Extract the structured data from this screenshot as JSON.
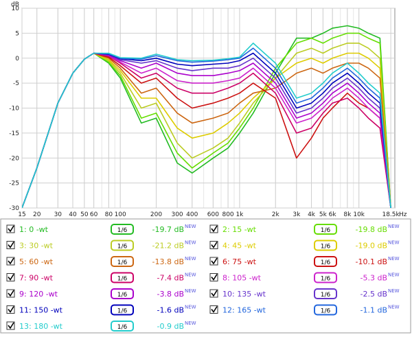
{
  "chart_data": {
    "type": "line",
    "ylabel": "dB",
    "xunit": "Hz",
    "xscale": "log",
    "xlim": [
      15,
      20000
    ],
    "ylim": [
      -30,
      10
    ],
    "y_ticks": [
      10,
      5,
      0,
      -5,
      -10,
      -15,
      -20,
      -25,
      -30
    ],
    "x_ticks": [
      {
        "v": 15,
        "label": "15"
      },
      {
        "v": 20,
        "label": "20"
      },
      {
        "v": 30,
        "label": "30"
      },
      {
        "v": 40,
        "label": "40"
      },
      {
        "v": 50,
        "label": "50"
      },
      {
        "v": 60,
        "label": "60"
      },
      {
        "v": 80,
        "label": "80"
      },
      {
        "v": 100,
        "label": "100"
      },
      {
        "v": 200,
        "label": "200"
      },
      {
        "v": 300,
        "label": "300"
      },
      {
        "v": 400,
        "label": "400"
      },
      {
        "v": 600,
        "label": "600"
      },
      {
        "v": 800,
        "label": "800"
      },
      {
        "v": 1000,
        "label": "1k"
      },
      {
        "v": 2000,
        "label": "2k"
      },
      {
        "v": 3000,
        "label": "3k"
      },
      {
        "v": 4000,
        "label": "4k"
      },
      {
        "v": 5000,
        "label": "5k"
      },
      {
        "v": 6000,
        "label": "6k"
      },
      {
        "v": 8000,
        "label": "8k"
      },
      {
        "v": 10000,
        "label": "10k"
      },
      {
        "v": 18500,
        "label": "18.5k"
      }
    ],
    "grid": true,
    "x": [
      15,
      20,
      30,
      40,
      50,
      60,
      80,
      100,
      150,
      200,
      300,
      400,
      600,
      800,
      1000,
      1300,
      2000,
      3000,
      4000,
      5000,
      6000,
      8000,
      10000,
      12000,
      15000,
      18500
    ],
    "series": [
      {
        "name": "1: 0  -wt",
        "color": "#22bb22",
        "values": [
          -30,
          -22,
          -9,
          -3,
          -0.2,
          1,
          -1,
          -4,
          -13,
          -12,
          -21,
          -23,
          -20,
          -18,
          -15,
          -11,
          -3,
          4,
          4,
          5,
          6,
          6.5,
          6,
          5,
          4,
          -30
        ]
      },
      {
        "name": "2: 15  -wt",
        "color": "#66dd00",
        "values": [
          -30,
          -22,
          -9,
          -3,
          -0.2,
          1,
          -0.8,
          -3.5,
          -12,
          -11,
          -19,
          -22,
          -19,
          -17,
          -14,
          -10,
          -2,
          3,
          4,
          3,
          4,
          5,
          5,
          4,
          3,
          -30
        ]
      },
      {
        "name": "3: 30  -wt",
        "color": "#bbcc22",
        "values": [
          -30,
          -22,
          -9,
          -3,
          -0.2,
          1,
          -0.5,
          -3,
          -10,
          -9,
          -17,
          -20,
          -18,
          -16,
          -13,
          -9,
          -4,
          1,
          2,
          1,
          2,
          3,
          3,
          2,
          0,
          -30
        ]
      },
      {
        "name": "4: 45  -wt",
        "color": "#ddcc00",
        "values": [
          -30,
          -22,
          -9,
          -3,
          -0.2,
          1,
          -0.3,
          -2.5,
          -8,
          -8,
          -14,
          -16,
          -15,
          -13,
          -11,
          -8,
          -4,
          -1,
          0,
          -1,
          0,
          1,
          1,
          0,
          -2,
          -30
        ]
      },
      {
        "name": "5: 60  -wt",
        "color": "#cc6611",
        "values": [
          -30,
          -22,
          -9,
          -3,
          -0.2,
          1,
          0,
          -2,
          -7,
          -6,
          -11,
          -13,
          -12,
          -11,
          -9,
          -7,
          -6,
          -3,
          -2,
          -3,
          -2,
          -1,
          -1,
          -2,
          -4,
          -30
        ]
      },
      {
        "name": "6: 75  -wt",
        "color": "#cc1111",
        "values": [
          -30,
          -22,
          -9,
          -3,
          -0.2,
          1,
          0.2,
          -1.5,
          -5,
          -4,
          -8,
          -10,
          -9,
          -8,
          -7,
          -5,
          -8,
          -20,
          -16,
          -12,
          -10,
          -7,
          -9,
          -10,
          -12,
          -30
        ]
      },
      {
        "name": "7: 90  -wt",
        "color": "#cc0066",
        "values": [
          -30,
          -22,
          -9,
          -3,
          -0.2,
          1,
          0.4,
          -1,
          -4,
          -3,
          -6,
          -7,
          -7,
          -6,
          -5,
          -3,
          -7,
          -15,
          -14,
          -11,
          -9,
          -8,
          -10,
          -12,
          -14,
          -30
        ]
      },
      {
        "name": "8: 105  -wt",
        "color": "#cc22cc",
        "values": [
          -30,
          -22,
          -9,
          -3,
          -0.2,
          1,
          0.5,
          -0.8,
          -3,
          -2,
          -4.5,
          -5,
          -5,
          -4.5,
          -4,
          -2,
          -6,
          -13,
          -12,
          -10,
          -8,
          -6,
          -8,
          -10,
          -12,
          -30
        ]
      },
      {
        "name": "9: 120  -wt",
        "color": "#aa00cc",
        "values": [
          -30,
          -22,
          -9,
          -3,
          -0.2,
          1,
          0.6,
          -0.5,
          -2,
          -1,
          -3,
          -3.5,
          -3.5,
          -3,
          -2.5,
          -1,
          -5,
          -12,
          -11,
          -9,
          -7,
          -5,
          -7,
          -9,
          -11,
          -30
        ]
      },
      {
        "name": "10: 135  -wt",
        "color": "#6633cc",
        "values": [
          -30,
          -22,
          -9,
          -3,
          -0.2,
          1,
          0.7,
          -0.3,
          -1,
          -0.5,
          -2,
          -2.5,
          -2,
          -2,
          -1.5,
          0,
          -4,
          -11,
          -10,
          -8,
          -6,
          -4,
          -6,
          -8,
          -10,
          -30
        ]
      },
      {
        "name": "11: 150  -wt",
        "color": "#0000bb",
        "values": [
          -30,
          -22,
          -9,
          -3,
          -0.2,
          1,
          0.8,
          -0.1,
          -0.5,
          0,
          -1.2,
          -1.5,
          -1.2,
          -1,
          -0.5,
          1,
          -3,
          -10,
          -9,
          -7,
          -5,
          -3,
          -5,
          -7,
          -9,
          -30
        ]
      },
      {
        "name": "12: 165  -wt",
        "color": "#2266dd",
        "values": [
          -30,
          -22,
          -9,
          -3,
          -0.2,
          1,
          0.9,
          0,
          -0.2,
          0.5,
          -0.5,
          -0.8,
          -0.6,
          -0.3,
          0,
          2,
          -2,
          -9,
          -8,
          -6,
          -4,
          -2,
          -4,
          -6,
          -8,
          -30
        ]
      },
      {
        "name": "13: 180  -wt",
        "color": "#22cccc",
        "values": [
          -30,
          -22,
          -9,
          -3,
          -0.2,
          1,
          1,
          0.1,
          0,
          0.8,
          -0.3,
          -0.5,
          -0.4,
          -0.1,
          0.2,
          3,
          -1,
          -8,
          -7,
          -5,
          -3,
          -1,
          -3,
          -5,
          -7,
          -30
        ]
      }
    ],
    "legend": [
      {
        "idx": 0,
        "label": "1: 0  -wt",
        "color": "#22bb22",
        "smoothing": "1/6",
        "value": "-19.7 dB",
        "tag": "NEW"
      },
      {
        "idx": 1,
        "label": "2: 15  -wt",
        "color": "#66dd00",
        "smoothing": "1/6",
        "value": "-19.8 dB",
        "tag": "NEW"
      },
      {
        "idx": 2,
        "label": "3: 30  -wt",
        "color": "#bbcc22",
        "smoothing": "1/6",
        "value": "-21.2 dB",
        "tag": "NEW"
      },
      {
        "idx": 3,
        "label": "4: 45  -wt",
        "color": "#ddcc00",
        "smoothing": "1/6",
        "value": "-19.0 dB",
        "tag": "NEW"
      },
      {
        "idx": 4,
        "label": "5: 60  -wt",
        "color": "#cc6611",
        "smoothing": "1/6",
        "value": "-13.8 dB",
        "tag": "NEW"
      },
      {
        "idx": 5,
        "label": "6: 75  -wt",
        "color": "#cc1111",
        "smoothing": "1/6",
        "value": "-10.1 dB",
        "tag": "NEW"
      },
      {
        "idx": 6,
        "label": "7: 90  -wt",
        "color": "#cc0066",
        "smoothing": "1/6",
        "value": "-7.4 dB",
        "tag": "NEW"
      },
      {
        "idx": 7,
        "label": "8: 105  -wt",
        "color": "#cc22cc",
        "smoothing": "1/6",
        "value": "-5.3 dB",
        "tag": "NEW"
      },
      {
        "idx": 8,
        "label": "9: 120  -wt",
        "color": "#aa00cc",
        "smoothing": "1/6",
        "value": "-3.8 dB",
        "tag": "NEW"
      },
      {
        "idx": 9,
        "label": "10: 135  -wt",
        "color": "#6633cc",
        "smoothing": "1/6",
        "value": "-2.5 dB",
        "tag": "NEW"
      },
      {
        "idx": 10,
        "label": "11: 150  -wt",
        "color": "#0000bb",
        "smoothing": "1/6",
        "value": "-1.6 dB",
        "tag": "NEW"
      },
      {
        "idx": 11,
        "label": "12: 165  -wt",
        "color": "#2266dd",
        "smoothing": "1/6",
        "value": "-1.1 dB",
        "tag": "NEW"
      },
      {
        "idx": 12,
        "label": "13: 180  -wt",
        "color": "#22cccc",
        "smoothing": "1/6",
        "value": "-0.9 dB",
        "tag": "NEW"
      }
    ]
  }
}
